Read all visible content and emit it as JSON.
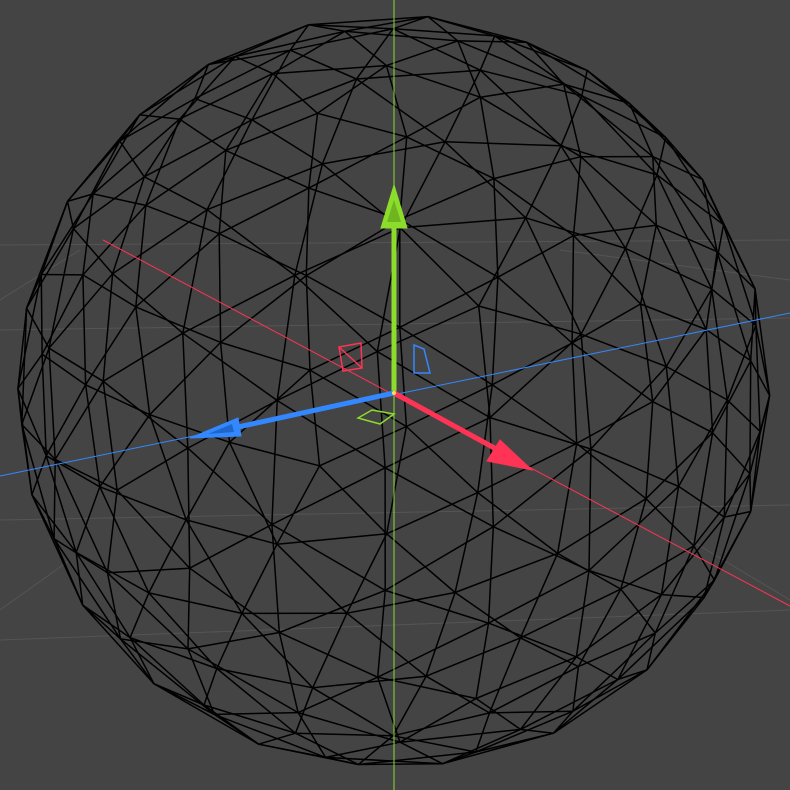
{
  "viewport": {
    "view": "perspective",
    "background_color": "#444444",
    "grid_color": "#555555",
    "grid_visible": true
  },
  "object": {
    "type": "geosphere",
    "display": "wireframe",
    "wire_color": "#000000",
    "selected": true
  },
  "gizmo": {
    "type": "move",
    "x_axis_color": "#ff3355",
    "y_axis_color": "#8bdc2b",
    "z_axis_color": "#3388ff",
    "x_arrow_icon": "arrow-head",
    "y_arrow_icon": "arrow-head",
    "z_arrow_icon": "arrow-head",
    "xy_plane_icon": "plane-handle",
    "yz_plane_icon": "plane-handle",
    "xz_plane_icon": "plane-handle"
  }
}
